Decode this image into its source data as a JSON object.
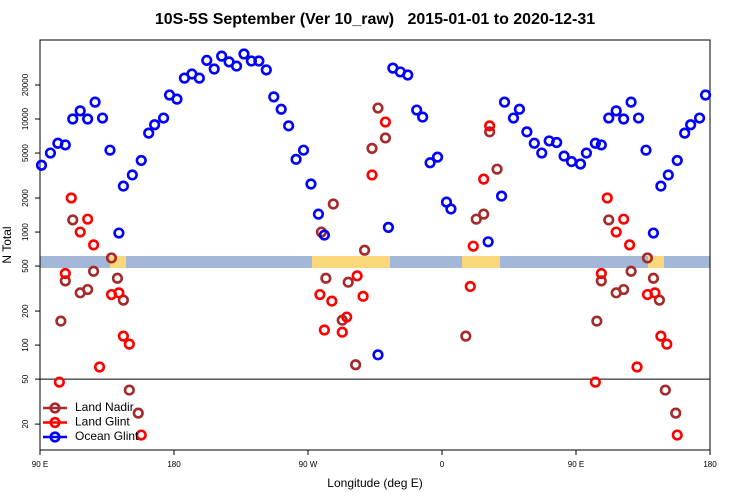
{
  "chart_data": {
    "type": "scatter",
    "title": "10S-5S September (Ver 10_raw)   2015-01-01 to 2020-12-31",
    "x_label": "Longitude (deg E)",
    "y_label": "N Total",
    "log_y": true,
    "legend": "lower left",
    "reference_line": 50,
    "xlim": [
      90,
      540
    ],
    "xticks": [
      {
        "value": 90,
        "label": "90 E"
      },
      180,
      {
        "value": 270,
        "label": "90 W"
      },
      {
        "value": 360,
        "label": "0"
      },
      {
        "value": 450,
        "label": "90 E"
      },
      {
        "value": 540,
        "label": "180"
      }
    ],
    "ylim": [
      11.8,
      50000
    ],
    "yticks": [
      20,
      50,
      100,
      200,
      500,
      1000,
      2000,
      5000,
      10000,
      20000
    ],
    "series": [
      {
        "name": "Land Nadir",
        "color": "#a52a2a",
        "x": [
          104,
          107,
          112,
          117,
          122,
          126,
          138,
          142,
          146,
          150,
          156,
          279,
          282,
          287,
          293,
          297,
          302,
          308,
          313,
          317,
          322,
          376,
          383,
          388,
          392,
          397,
          464,
          467,
          472,
          477,
          482,
          487,
          498,
          502,
          506,
          510,
          517
        ],
        "values": [
          163,
          370,
          1280,
          290,
          310,
          450,
          590,
          390,
          250,
          40,
          25,
          1000,
          390,
          1770,
          166,
          360,
          67,
          690,
          5500,
          12500,
          6800,
          120,
          1300,
          1440,
          7700,
          3600,
          163,
          370,
          1280,
          290,
          310,
          450,
          590,
          390,
          250,
          40,
          25
        ]
      },
      {
        "name": "Land Glint",
        "color": "#ff0000",
        "x": [
          103,
          107,
          111,
          117,
          122,
          126,
          130,
          138,
          143,
          146,
          150,
          158,
          278,
          281,
          286,
          293,
          296,
          303,
          307,
          313,
          322,
          379,
          381,
          388,
          392,
          463,
          467,
          471,
          477,
          482,
          486,
          491,
          498,
          503,
          507,
          511,
          518
        ],
        "values": [
          47,
          430,
          2000,
          1000,
          1300,
          770,
          64,
          280,
          290,
          120,
          102,
          16,
          280,
          136,
          245,
          130,
          177,
          410,
          270,
          3200,
          9400,
          330,
          750,
          2940,
          8700,
          47,
          430,
          2000,
          1000,
          1300,
          770,
          64,
          280,
          290,
          120,
          102,
          16
        ]
      },
      {
        "name": "Ocean Glint",
        "color": "#0000ff",
        "x": [
          91,
          97,
          102,
          107,
          112,
          117,
          122,
          127,
          132,
          137,
          143,
          146,
          152,
          158,
          163,
          167,
          173,
          177,
          182,
          187,
          192,
          197,
          202,
          207,
          212,
          217,
          222,
          227,
          232,
          237,
          242,
          247,
          252,
          257,
          262,
          267,
          272,
          277,
          281,
          317,
          324,
          327,
          332,
          337,
          343,
          347,
          352,
          357,
          363,
          366,
          391,
          400,
          402,
          408,
          412,
          417,
          422,
          427,
          432,
          437,
          442,
          447,
          453,
          457,
          463,
          467,
          472,
          477,
          482,
          487,
          492,
          497,
          502,
          507,
          512,
          518,
          523,
          527,
          533,
          537
        ],
        "values": [
          3900,
          5000,
          6100,
          5900,
          10000,
          11800,
          10000,
          14100,
          10200,
          5300,
          980,
          2550,
          3200,
          4300,
          7500,
          8900,
          10200,
          16300,
          15000,
          23000,
          25000,
          23000,
          33000,
          27700,
          36000,
          32000,
          29400,
          37600,
          32600,
          32600,
          27200,
          15700,
          12200,
          8700,
          4400,
          5300,
          2660,
          1440,
          940,
          82,
          1100,
          28200,
          26100,
          24500,
          12000,
          10400,
          4100,
          4600,
          1840,
          1600,
          820,
          2080,
          14100,
          10200,
          12200,
          7700,
          6100,
          5000,
          6400,
          6200,
          4700,
          4200,
          4000,
          5000,
          6100,
          5900,
          10200,
          11800,
          10000,
          14100,
          10200,
          5300,
          980,
          2550,
          3200,
          4300,
          7500,
          8900,
          10200,
          16300
        ]
      }
    ]
  }
}
